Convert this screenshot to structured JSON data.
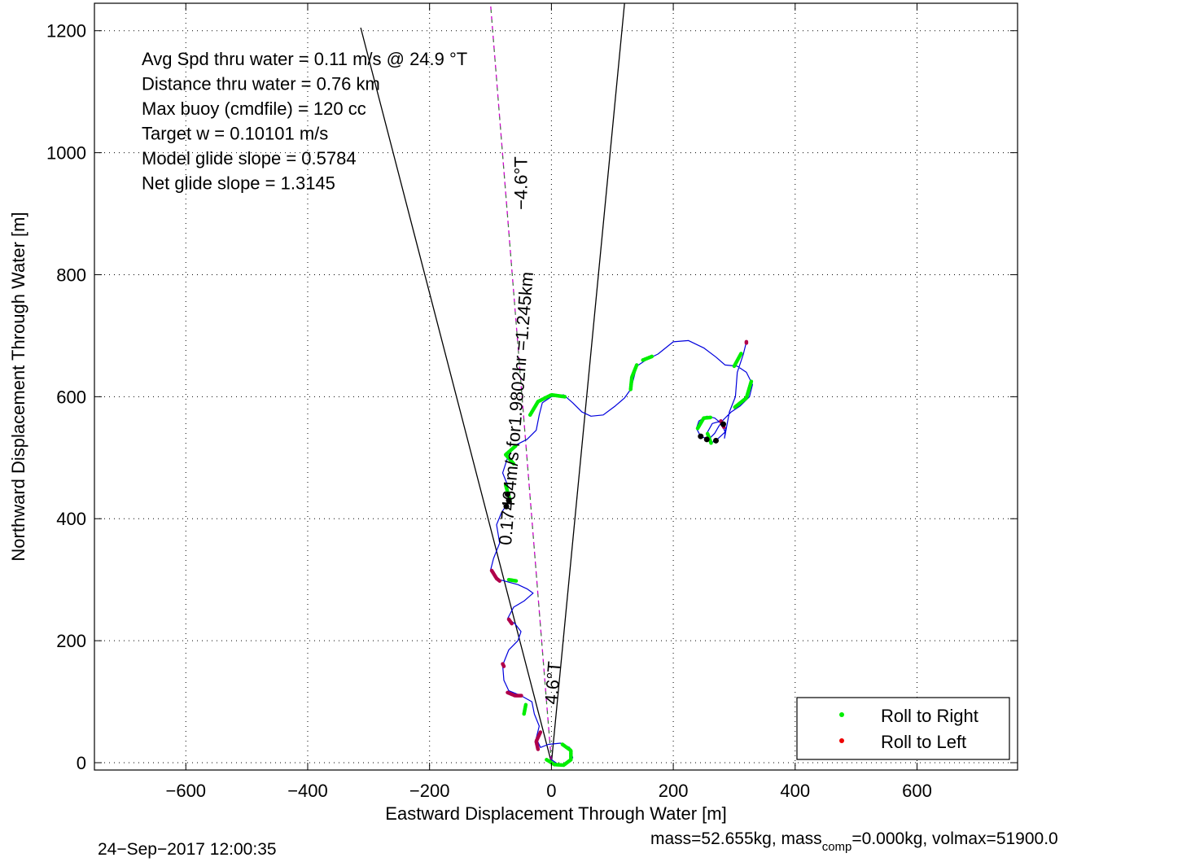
{
  "chart_data": {
    "type": "line",
    "xlabel": "Eastward Displacement Through Water [m]",
    "ylabel": "Northward Displacement Through Water [m]",
    "xlim": [
      -750,
      765
    ],
    "ylim": [
      -12,
      1245
    ],
    "xticks": [
      -600,
      -400,
      -200,
      0,
      200,
      400,
      600
    ],
    "yticks": [
      0,
      200,
      400,
      600,
      800,
      1000,
      1200
    ],
    "grid": true,
    "legend": {
      "placement": "bottom-right",
      "entries": [
        {
          "label": "Roll to Right",
          "color": "#00ee00"
        },
        {
          "label": "Roll to Left",
          "color": "#ee0000"
        }
      ]
    },
    "annotations": [
      "Avg Spd thru water =  0.11 m/s @  24.9   °T",
      "Distance thru water =  0.76 km",
      "Max buoy (cmdfile) = 120 cc",
      "Target w = 0.10101 m/s",
      "Model glide slope = 0.5784",
      "Net glide slope = 1.3145"
    ],
    "rotated_labels": [
      {
        "text": "−4.6°T",
        "x": -40,
        "y": 950,
        "angle": -90
      },
      {
        "text": "0.17464m/s for1.9802hr =1.245km",
        "x": -48,
        "y": 580,
        "angle": -85.4
      },
      {
        "text": "4.6°T",
        "x": 12,
        "y": 130,
        "angle": -85.4
      }
    ],
    "lines": [
      {
        "name": "heading-cone-left",
        "color": "#000000",
        "points": [
          [
            0,
            0
          ],
          [
            -313,
            1205
          ]
        ]
      },
      {
        "name": "heading-cone-right",
        "color": "#000000",
        "points": [
          [
            0,
            0
          ],
          [
            120,
            1245
          ]
        ]
      },
      {
        "name": "target-heading",
        "color": "#cc00cc",
        "dash": "dashed",
        "points": [
          [
            0,
            0
          ],
          [
            -100,
            1245
          ]
        ]
      }
    ],
    "track": {
      "color": "#0000dd",
      "points": [
        [
          0,
          5
        ],
        [
          10,
          -2
        ],
        [
          25,
          -2
        ],
        [
          35,
          8
        ],
        [
          30,
          25
        ],
        [
          15,
          32
        ],
        [
          -5,
          30
        ],
        [
          -18,
          25
        ],
        [
          -25,
          40
        ],
        [
          -20,
          60
        ],
        [
          -28,
          80
        ],
        [
          -32,
          100
        ],
        [
          -50,
          110
        ],
        [
          -70,
          118
        ],
        [
          -78,
          135
        ],
        [
          -80,
          160
        ],
        [
          -70,
          185
        ],
        [
          -55,
          200
        ],
        [
          -50,
          215
        ],
        [
          -60,
          228
        ],
        [
          -72,
          236
        ],
        [
          -62,
          255
        ],
        [
          -45,
          265
        ],
        [
          -30,
          278
        ],
        [
          -40,
          285
        ],
        [
          -55,
          292
        ],
        [
          -85,
          300
        ],
        [
          -100,
          315
        ],
        [
          -95,
          335
        ],
        [
          -85,
          360
        ],
        [
          -90,
          390
        ],
        [
          -82,
          410
        ],
        [
          -70,
          428
        ],
        [
          -72,
          455
        ],
        [
          -80,
          475
        ],
        [
          -72,
          500
        ],
        [
          -60,
          520
        ],
        [
          -40,
          530
        ],
        [
          -25,
          545
        ],
        [
          -20,
          570
        ],
        [
          -15,
          590
        ],
        [
          0,
          600
        ],
        [
          20,
          603
        ],
        [
          35,
          590
        ],
        [
          50,
          575
        ],
        [
          65,
          568
        ],
        [
          85,
          570
        ],
        [
          105,
          585
        ],
        [
          120,
          598
        ],
        [
          130,
          612
        ],
        [
          135,
          630
        ],
        [
          140,
          650
        ],
        [
          155,
          660
        ],
        [
          175,
          670
        ],
        [
          200,
          690
        ],
        [
          225,
          692
        ],
        [
          250,
          680
        ],
        [
          270,
          665
        ],
        [
          285,
          652
        ],
        [
          305,
          650
        ],
        [
          320,
          640
        ],
        [
          330,
          620
        ],
        [
          325,
          600
        ],
        [
          310,
          585
        ],
        [
          295,
          575
        ],
        [
          282,
          562
        ],
        [
          275,
          552
        ],
        [
          268,
          540
        ],
        [
          258,
          530
        ],
        [
          245,
          535
        ],
        [
          238,
          548
        ],
        [
          242,
          560
        ],
        [
          255,
          568
        ],
        [
          268,
          565
        ],
        [
          280,
          555
        ],
        [
          285,
          542
        ],
        [
          272,
          530
        ],
        [
          262,
          524
        ],
        [
          255,
          540
        ],
        [
          264,
          556
        ],
        [
          278,
          560
        ],
        [
          286,
          548
        ],
        [
          284,
          532
        ],
        [
          292,
          575
        ],
        [
          302,
          600
        ],
        [
          305,
          640
        ],
        [
          315,
          670
        ],
        [
          320,
          690
        ]
      ]
    },
    "roll_right_segments": [
      [
        [
          -8,
          5
        ],
        [
          5,
          -3
        ],
        [
          20,
          -4
        ],
        [
          32,
          5
        ],
        [
          32,
          20
        ],
        [
          18,
          30
        ]
      ],
      [
        [
          -45,
          80
        ],
        [
          -42,
          95
        ]
      ],
      [
        [
          -70,
          300
        ],
        [
          -58,
          298
        ]
      ],
      [
        [
          -75,
          455
        ],
        [
          -68,
          430
        ]
      ],
      [
        [
          -62,
          490
        ],
        [
          -75,
          505
        ],
        [
          -58,
          520
        ]
      ],
      [
        [
          -35,
          570
        ],
        [
          -22,
          592
        ],
        [
          0,
          603
        ],
        [
          22,
          600
        ]
      ],
      [
        [
          130,
          612
        ],
        [
          132,
          632
        ],
        [
          140,
          652
        ]
      ],
      [
        [
          150,
          660
        ],
        [
          165,
          666
        ]
      ],
      [
        [
          300,
          650
        ],
        [
          312,
          672
        ]
      ],
      [
        [
          328,
          625
        ],
        [
          320,
          598
        ],
        [
          300,
          582
        ]
      ],
      [
        [
          240,
          548
        ],
        [
          250,
          565
        ],
        [
          262,
          566
        ]
      ],
      [
        [
          262,
          524
        ],
        [
          256,
          540
        ]
      ]
    ],
    "roll_left_segments": [
      [
        [
          -22,
          22
        ],
        [
          -25,
          35
        ],
        [
          -18,
          50
        ]
      ],
      [
        [
          -72,
          115
        ],
        [
          -60,
          110
        ],
        [
          -48,
          110
        ]
      ],
      [
        [
          -80,
          162
        ],
        [
          -78,
          158
        ]
      ],
      [
        [
          -70,
          235
        ],
        [
          -65,
          228
        ]
      ],
      [
        [
          -98,
          315
        ],
        [
          -90,
          302
        ],
        [
          -85,
          298
        ]
      ],
      [
        [
          278,
          560
        ],
        [
          283,
          550
        ]
      ],
      [
        [
          320,
          690
        ],
        [
          320,
          688
        ]
      ]
    ],
    "black_markers": [
      [
        -72,
        440
      ],
      [
        -70,
        430
      ],
      [
        -74,
        420
      ],
      [
        255,
        530
      ],
      [
        270,
        528
      ],
      [
        282,
        555
      ],
      [
        245,
        535
      ]
    ]
  },
  "footer": {
    "date": "24−Sep−2017 12:00:35",
    "mass_pre": "mass=52.655kg, mass",
    "mass_sub": "comp",
    "mass_post": "=0.000kg, volmax=51900.0"
  }
}
